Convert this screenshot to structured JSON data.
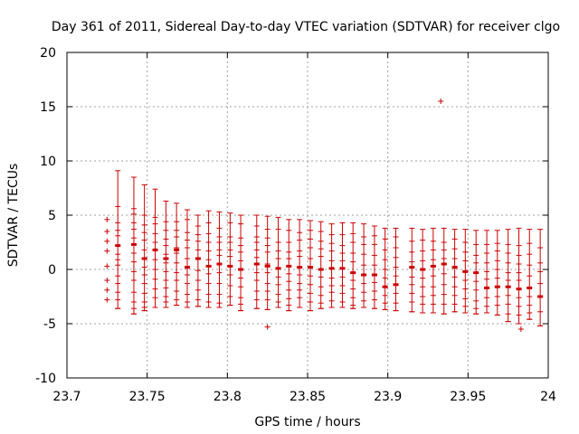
{
  "chart_data": {
    "type": "scatter",
    "title": "Day 361 of 2011, Sidereal Day-to-day VTEC variation (SDTVAR) for receiver clgo",
    "xlabel": "GPS time / hours",
    "ylabel": "SDTVAR / TECUs",
    "xlim": [
      23.7,
      24
    ],
    "ylim": [
      -10,
      20
    ],
    "x_ticks": [
      "23.7",
      "23.75",
      "23.8",
      "23.85",
      "23.9",
      "23.95",
      "24"
    ],
    "y_ticks": [
      "-10",
      "-5",
      "0",
      "5",
      "10",
      "15",
      "20"
    ],
    "grid": true,
    "color": "#cc0000",
    "marker": "+",
    "series": [
      {
        "name": "data",
        "marker": "+",
        "points": [
          [
            23.725,
            4.6
          ],
          [
            23.725,
            3.5
          ],
          [
            23.725,
            2.6
          ],
          [
            23.725,
            1.7
          ],
          [
            23.725,
            0.3
          ],
          [
            23.725,
            -1.0
          ],
          [
            23.725,
            -1.9
          ],
          [
            23.725,
            -2.8
          ],
          [
            23.933,
            15.5
          ],
          [
            23.825,
            -5.3
          ],
          [
            23.983,
            -5.5
          ]
        ]
      },
      {
        "name": "error-bars",
        "marker": "errorbar",
        "bars": [
          {
            "x": 23.7317,
            "y": 2.2,
            "low": -3.6,
            "high": 9.1,
            "stack": [
              5.8,
              4.3,
              3.6,
              3.1,
              2.2,
              1.4,
              0.9,
              0.4,
              -0.6,
              -1.3,
              -2.1,
              -2.8,
              -3.6
            ]
          },
          {
            "x": 23.7417,
            "y": 2.3,
            "low": -4.1,
            "high": 8.5,
            "stack": [
              5.6,
              5.1,
              4.3,
              3.7,
              2.9,
              2.3,
              1.5,
              0.7,
              -0.2,
              -1.0,
              -2.1,
              -3.0,
              -3.6,
              -4.1
            ]
          },
          {
            "x": 23.7483,
            "y": 1.0,
            "low": -3.8,
            "high": 7.8,
            "stack": [
              5.0,
              4.1,
              3.4,
              2.7,
              1.8,
              1.0,
              0.2,
              -0.5,
              -1.3,
              -2.2,
              -3.0,
              -3.5,
              -3.8
            ]
          },
          {
            "x": 23.755,
            "y": 1.8,
            "low": -3.5,
            "high": 7.4,
            "stack": [
              4.8,
              4.2,
              3.3,
              2.5,
              1.8,
              0.9,
              0.0,
              -0.9,
              -1.8,
              -2.6,
              -3.5
            ]
          },
          {
            "x": 23.7617,
            "y": 1.0,
            "low": -3.5,
            "high": 6.3,
            "stack": [
              4.4,
              3.6,
              2.8,
              2.2,
              1.4,
              0.6,
              -0.2,
              -1.0,
              -1.7,
              -2.5,
              -3.0,
              -3.5
            ]
          },
          {
            "x": 23.7683,
            "y": 1.8,
            "low": -3.3,
            "high": 6.1,
            "stack": [
              4.4,
              3.6,
              3.0,
              2.0,
              1.5,
              0.6,
              -0.3,
              -1.0,
              -2.0,
              -2.8,
              -3.3
            ]
          },
          {
            "x": 23.775,
            "y": 0.2,
            "low": -3.5,
            "high": 5.5,
            "stack": [
              4.6,
              3.4,
              2.7,
              2.0,
              1.0,
              0.2,
              -0.5,
              -1.3,
              -2.3,
              -3.0,
              -3.5
            ]
          },
          {
            "x": 23.7817,
            "y": 1.0,
            "low": -3.4,
            "high": 5.0,
            "stack": [
              4.0,
              3.2,
              2.6,
              1.8,
              1.0,
              -0.1,
              -1.0,
              -1.9,
              -2.8,
              -3.4
            ]
          },
          {
            "x": 23.7883,
            "y": 0.3,
            "low": -3.5,
            "high": 5.4,
            "stack": [
              4.3,
              3.3,
              2.5,
              1.7,
              0.9,
              0.3,
              -0.4,
              -1.3,
              -2.3,
              -3.0,
              -3.5
            ]
          },
          {
            "x": 23.795,
            "y": 0.5,
            "low": -3.5,
            "high": 5.3,
            "stack": [
              3.8,
              3.0,
              2.5,
              1.8,
              1.3,
              0.5,
              -0.3,
              -1.3,
              -2.3,
              -3.1
            ]
          },
          {
            "x": 23.8017,
            "y": 0.3,
            "low": -3.3,
            "high": 5.2,
            "stack": [
              4.3,
              3.0,
              2.5,
              1.8,
              1.2,
              0.3,
              -0.5,
              -1.5,
              -2.5,
              -3.3
            ]
          },
          {
            "x": 23.8083,
            "y": 0.0,
            "low": -3.8,
            "high": 5.0,
            "stack": [
              4.2,
              2.9,
              2.2,
              1.6,
              0.8,
              0.0,
              -0.8,
              -1.6,
              -2.6,
              -3.2,
              -3.8
            ]
          },
          {
            "x": 23.8183,
            "y": 0.5,
            "low": -3.6,
            "high": 5.0,
            "stack": [
              4.0,
              3.0,
              2.5,
              1.8,
              1.1,
              0.5,
              -0.3,
              -1.0,
              -2.0,
              -2.8,
              -3.6
            ]
          },
          {
            "x": 23.825,
            "y": 0.3,
            "low": -3.7,
            "high": 4.9,
            "stack": [
              3.7,
              2.9,
              2.2,
              1.6,
              0.5,
              -0.3,
              -1.3,
              -2.0,
              -2.8,
              -3.7
            ]
          },
          {
            "x": 23.8317,
            "y": 0.1,
            "low": -3.5,
            "high": 4.8,
            "stack": [
              3.7,
              2.5,
              1.7,
              1.0,
              0.1,
              -0.7,
              -1.4,
              -2.3,
              -3.0,
              -3.5
            ]
          },
          {
            "x": 23.8383,
            "y": 0.3,
            "low": -3.8,
            "high": 4.6,
            "stack": [
              3.6,
              2.5,
              1.6,
              1.0,
              0.3,
              -0.4,
              -1.1,
              -1.9,
              -2.7,
              -3.3,
              -3.8
            ]
          },
          {
            "x": 23.845,
            "y": 0.2,
            "low": -3.5,
            "high": 4.6,
            "stack": [
              3.4,
              2.7,
              1.7,
              1.2,
              0.2,
              -0.5,
              -1.3,
              -1.9,
              -2.6,
              -3.5
            ]
          },
          {
            "x": 23.8517,
            "y": 0.2,
            "low": -3.8,
            "high": 4.5,
            "stack": [
              3.6,
              2.8,
              2.0,
              1.0,
              0.2,
              -0.6,
              -1.4,
              -2.2,
              -3.0,
              -3.8
            ]
          },
          {
            "x": 23.8583,
            "y": 0.0,
            "low": -3.6,
            "high": 4.4,
            "stack": [
              3.5,
              2.6,
              1.9,
              1.2,
              0.0,
              -0.7,
              -1.6,
              -2.4,
              -3.1,
              -3.6
            ]
          },
          {
            "x": 23.865,
            "y": 0.1,
            "low": -3.5,
            "high": 4.2,
            "stack": [
              3.2,
              2.4,
              1.7,
              0.8,
              0.1,
              -0.8,
              -1.5,
              -2.1,
              -2.9,
              -3.5
            ]
          },
          {
            "x": 23.8717,
            "y": 0.1,
            "low": -3.5,
            "high": 4.3,
            "stack": [
              3.2,
              2.2,
              1.5,
              0.8,
              0.1,
              -0.7,
              -1.5,
              -2.2,
              -3.0,
              -3.5
            ]
          },
          {
            "x": 23.8783,
            "y": -0.3,
            "low": -3.6,
            "high": 4.3,
            "stack": [
              3.3,
              2.5,
              1.5,
              0.7,
              -0.3,
              -1.0,
              -1.8,
              -2.6,
              -3.3,
              -3.6
            ]
          },
          {
            "x": 23.885,
            "y": -0.5,
            "low": -3.5,
            "high": 4.2,
            "stack": [
              3.0,
              2.3,
              1.4,
              0.4,
              -0.5,
              -1.3,
              -2.1,
              -2.9,
              -3.5
            ]
          },
          {
            "x": 23.8917,
            "y": -0.5,
            "low": -3.6,
            "high": 4.0,
            "stack": [
              3.1,
              2.3,
              1.3,
              0.4,
              -0.5,
              -1.2,
              -2.0,
              -2.8,
              -3.6
            ]
          },
          {
            "x": 23.8983,
            "y": -1.6,
            "low": -3.7,
            "high": 3.8,
            "stack": [
              2.8,
              1.8,
              0.9,
              0.0,
              -0.8,
              -1.6,
              -2.4,
              -3.1,
              -3.7
            ]
          },
          {
            "x": 23.905,
            "y": -1.4,
            "low": -3.8,
            "high": 3.8,
            "stack": [
              3.0,
              2.0,
              1.1,
              0.2,
              -0.6,
              -1.4,
              -2.2,
              -3.1,
              -3.8
            ]
          },
          {
            "x": 23.915,
            "y": 0.2,
            "low": -3.9,
            "high": 3.8,
            "stack": [
              2.6,
              1.6,
              0.7,
              0.2,
              -0.7,
              -1.4,
              -2.2,
              -3.0,
              -3.9
            ]
          },
          {
            "x": 23.9217,
            "y": 0.0,
            "low": -4.0,
            "high": 3.7,
            "stack": [
              2.7,
              1.7,
              0.8,
              0.0,
              -0.8,
              -1.6,
              -2.5,
              -3.2,
              -4.0
            ]
          },
          {
            "x": 23.9283,
            "y": 0.3,
            "low": -4.0,
            "high": 3.8,
            "stack": [
              2.6,
              1.8,
              0.9,
              0.3,
              -0.6,
              -1.6,
              -2.4,
              -3.2,
              -4.0
            ]
          },
          {
            "x": 23.935,
            "y": 0.5,
            "low": -4.1,
            "high": 3.8,
            "stack": [
              2.5,
              1.8,
              1.0,
              0.5,
              -0.4,
              -1.4,
              -2.3,
              -3.2,
              -4.1
            ]
          },
          {
            "x": 23.9417,
            "y": 0.2,
            "low": -3.9,
            "high": 3.7,
            "stack": [
              2.8,
              1.9,
              1.0,
              0.2,
              -0.7,
              -1.6,
              -2.4,
              -3.2,
              -3.9
            ]
          },
          {
            "x": 23.9483,
            "y": -0.2,
            "low": -4.0,
            "high": 3.7,
            "stack": [
              2.5,
              1.6,
              0.8,
              -0.2,
              -1.0,
              -1.8,
              -2.7,
              -3.4,
              -4.0
            ]
          },
          {
            "x": 23.955,
            "y": -0.3,
            "low": -4.1,
            "high": 3.6,
            "stack": [
              2.3,
              1.3,
              0.6,
              -0.3,
              -1.1,
              -1.9,
              -2.9,
              -3.6,
              -4.1
            ]
          },
          {
            "x": 23.9617,
            "y": -1.7,
            "low": -4.0,
            "high": 3.6,
            "stack": [
              2.3,
              1.5,
              0.6,
              -0.2,
              -0.9,
              -1.7,
              -2.6,
              -3.4,
              -4.0
            ]
          },
          {
            "x": 23.9683,
            "y": -1.6,
            "low": -4.2,
            "high": 3.6,
            "stack": [
              2.4,
              1.7,
              0.8,
              0.0,
              -0.8,
              -1.6,
              -2.5,
              -3.3,
              -4.2
            ]
          },
          {
            "x": 23.975,
            "y": -1.6,
            "low": -4.8,
            "high": 3.7,
            "stack": [
              2.3,
              1.5,
              0.6,
              -0.3,
              -1.0,
              -1.6,
              -2.4,
              -3.2,
              -4.1,
              -4.8
            ]
          },
          {
            "x": 23.9817,
            "y": -1.8,
            "low": -5.0,
            "high": 3.8,
            "stack": [
              2.2,
              1.3,
              0.5,
              -0.3,
              -1.0,
              -1.8,
              -2.6,
              -3.4,
              -4.2,
              -5.0
            ]
          },
          {
            "x": 23.9883,
            "y": -1.7,
            "low": -4.6,
            "high": 3.7,
            "stack": [
              2.4,
              1.4,
              0.4,
              -0.6,
              -1.7,
              -2.5,
              -3.3,
              -4.0,
              -4.6
            ]
          },
          {
            "x": 23.995,
            "y": -2.5,
            "low": -5.2,
            "high": 3.7,
            "stack": [
              2.0,
              0.6,
              -0.2,
              -1.3,
              -2.5,
              -3.9,
              -5.2
            ]
          }
        ]
      }
    ]
  }
}
